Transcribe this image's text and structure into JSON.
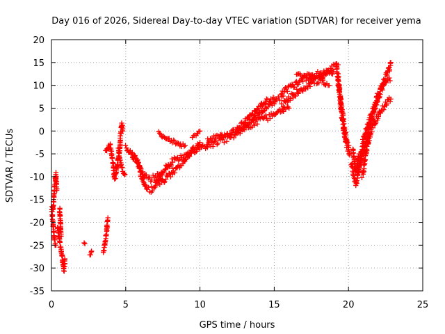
{
  "chart_data": {
    "type": "scatter",
    "title": "Day 016 of 2026, Sidereal Day-to-day VTEC variation (SDTVAR) for receiver yema",
    "xlabel": "GPS time / hours",
    "ylabel": "SDTVAR / TECUs",
    "xlim": [
      0,
      25
    ],
    "ylim": [
      -35,
      20
    ],
    "xticks": [
      0,
      5,
      10,
      15,
      20,
      25
    ],
    "xtick_labels": [
      "0",
      "5",
      "10",
      "15",
      "20",
      "25"
    ],
    "yticks": [
      20,
      15,
      10,
      5,
      0,
      -5,
      -10,
      -15,
      -20,
      -25,
      -30,
      -35
    ],
    "ytick_labels": [
      "20",
      "15",
      "10",
      "5",
      "0",
      "-5",
      "-10",
      "-15",
      "-20",
      "-25",
      "-30",
      "-35"
    ],
    "grid": true,
    "marker": "plus",
    "series": [
      {
        "name": "SDTVAR",
        "color": "#ff0000",
        "traces": [
          {
            "points": [
              [
                0.0,
                -16
              ],
              [
                0.05,
                -18
              ],
              [
                0.1,
                -20
              ],
              [
                0.15,
                -22
              ],
              [
                0.2,
                -23.5
              ],
              [
                0.25,
                -24.5
              ],
              [
                0.3,
                -25
              ]
            ],
            "spread": 1.0
          },
          {
            "points": [
              [
                0.1,
                -17
              ],
              [
                0.15,
                -15
              ],
              [
                0.2,
                -13
              ],
              [
                0.25,
                -11
              ],
              [
                0.3,
                -9.5
              ],
              [
                0.35,
                -13
              ]
            ],
            "spread": 1.0
          },
          {
            "points": [
              [
                0.4,
                -21
              ],
              [
                0.5,
                -23
              ],
              [
                0.6,
                -25
              ],
              [
                0.7,
                -27
              ],
              [
                0.8,
                -29.5
              ],
              [
                0.85,
                -30.5
              ],
              [
                0.9,
                -28
              ]
            ],
            "spread": 1.0
          },
          {
            "points": [
              [
                0.55,
                -17
              ],
              [
                0.6,
                -20
              ],
              [
                0.65,
                -23
              ]
            ],
            "spread": 0.8
          },
          {
            "points": [
              [
                2.2,
                -24.5
              ]
            ],
            "spread": 0.3
          },
          {
            "points": [
              [
                2.6,
                -27.3
              ],
              [
                2.65,
                -26.8
              ],
              [
                2.7,
                -26.3
              ]
            ],
            "spread": 0.4
          },
          {
            "points": [
              [
                3.5,
                -26.5
              ],
              [
                3.6,
                -24.5
              ],
              [
                3.7,
                -22.5
              ],
              [
                3.75,
                -20.5
              ],
              [
                3.8,
                -19
              ]
            ],
            "spread": 1.0
          },
          {
            "points": [
              [
                3.65,
                -4.5
              ],
              [
                3.8,
                -3.5
              ],
              [
                3.95,
                -3
              ],
              [
                4.05,
                -5
              ],
              [
                4.15,
                -7
              ],
              [
                4.2,
                -9
              ],
              [
                4.25,
                -10.5
              ]
            ],
            "spread": 1.0
          },
          {
            "points": [
              [
                4.3,
                -10
              ],
              [
                4.4,
                -8
              ],
              [
                4.5,
                -6
              ],
              [
                4.6,
                -4
              ],
              [
                4.65,
                -1
              ],
              [
                4.7,
                1
              ],
              [
                4.75,
                1.5
              ],
              [
                4.8,
                0
              ]
            ],
            "spread": 1.0
          },
          {
            "points": [
              [
                4.5,
                -4
              ],
              [
                4.6,
                -6.5
              ],
              [
                4.8,
                -8.5
              ],
              [
                4.95,
                -9.5
              ]
            ],
            "spread": 1.2
          },
          {
            "points": [
              [
                5.0,
                -3.5
              ],
              [
                5.3,
                -4.5
              ],
              [
                5.6,
                -6
              ],
              [
                5.9,
                -8
              ],
              [
                6.15,
                -10.5
              ],
              [
                6.4,
                -12.5
              ],
              [
                6.7,
                -12.8
              ],
              [
                7.0,
                -12
              ],
              [
                7.3,
                -10.5
              ]
            ],
            "spread": 1.3
          },
          {
            "points": [
              [
                5.5,
                -5
              ],
              [
                5.8,
                -6.5
              ],
              [
                6.0,
                -8.5
              ],
              [
                6.3,
                -10
              ],
              [
                6.6,
                -10.5
              ],
              [
                7.0,
                -10.2
              ],
              [
                7.4,
                -9
              ]
            ],
            "spread": 1.3
          },
          {
            "points": [
              [
                7.0,
                -11
              ],
              [
                7.5,
                -9
              ],
              [
                8.0,
                -7
              ],
              [
                8.5,
                -6
              ],
              [
                9.0,
                -5.5
              ],
              [
                9.5,
                -4.5
              ],
              [
                10.0,
                -3.5
              ],
              [
                10.5,
                -3
              ]
            ],
            "spread": 1.4
          },
          {
            "points": [
              [
                7.3,
                -11.5
              ],
              [
                7.8,
                -10
              ],
              [
                8.3,
                -8.5
              ],
              [
                8.8,
                -7
              ],
              [
                9.2,
                -5.5
              ],
              [
                9.6,
                -4
              ],
              [
                10.0,
                -2.5
              ]
            ],
            "spread": 1.4
          },
          {
            "points": [
              [
                7.2,
                -0.5
              ],
              [
                7.6,
                -1.2
              ],
              [
                8.0,
                -2
              ],
              [
                8.5,
                -2.8
              ],
              [
                9.0,
                -3.2
              ]
            ],
            "spread": 0.8
          },
          {
            "points": [
              [
                9.5,
                -1
              ],
              [
                9.8,
                -0.5
              ],
              [
                10.0,
                0
              ]
            ],
            "spread": 0.8
          },
          {
            "points": [
              [
                10.5,
                -3
              ],
              [
                11.0,
                -2.5
              ],
              [
                11.5,
                -2
              ],
              [
                12.0,
                -1.2
              ],
              [
                12.5,
                -0.5
              ],
              [
                13.0,
                0.5
              ],
              [
                13.5,
                1.5
              ],
              [
                14.0,
                2.5
              ],
              [
                14.5,
                3
              ],
              [
                15.0,
                3.5
              ],
              [
                15.5,
                4.2
              ],
              [
                16.0,
                5
              ]
            ],
            "spread": 1.5
          },
          {
            "points": [
              [
                10.5,
                -2
              ],
              [
                11.0,
                -1.5
              ],
              [
                11.5,
                -1
              ],
              [
                12.0,
                -0.5
              ],
              [
                12.5,
                0
              ],
              [
                13.0,
                1
              ],
              [
                13.5,
                2.5
              ],
              [
                14.0,
                4
              ],
              [
                14.5,
                5.5
              ],
              [
                15.0,
                6.5
              ],
              [
                15.5,
                7.5
              ]
            ],
            "spread": 1.2
          },
          {
            "points": [
              [
                12.5,
                0.5
              ],
              [
                13.0,
                2
              ],
              [
                13.5,
                3.5
              ],
              [
                14.0,
                5
              ],
              [
                14.5,
                6.5
              ],
              [
                15.0,
                7
              ]
            ],
            "spread": 1.2
          },
          {
            "points": [
              [
                15.5,
                5.5
              ],
              [
                16.0,
                7
              ],
              [
                16.5,
                8.5
              ],
              [
                17.0,
                9.5
              ],
              [
                17.5,
                10.5
              ],
              [
                18.0,
                11
              ],
              [
                18.5,
                12.5
              ],
              [
                19.0,
                14
              ],
              [
                19.3,
                14.5
              ]
            ],
            "spread": 1.4
          },
          {
            "points": [
              [
                15.5,
                8
              ],
              [
                16.0,
                9.5
              ],
              [
                16.5,
                10.5
              ],
              [
                17.0,
                11.5
              ],
              [
                17.5,
                12
              ],
              [
                18.0,
                12.5
              ],
              [
                18.5,
                13
              ],
              [
                19.0,
                13
              ]
            ],
            "spread": 1.4
          },
          {
            "points": [
              [
                16.5,
                12.5
              ],
              [
                17.0,
                12
              ],
              [
                17.3,
                12.5
              ],
              [
                17.6,
                11.5
              ],
              [
                18.0,
                12
              ],
              [
                18.4,
                10.5
              ],
              [
                18.7,
                10
              ]
            ],
            "spread": 0.8
          },
          {
            "points": [
              [
                19.2,
                14
              ],
              [
                19.3,
                11
              ],
              [
                19.4,
                8
              ],
              [
                19.5,
                5
              ],
              [
                19.6,
                2
              ],
              [
                19.7,
                0
              ],
              [
                19.8,
                -2
              ],
              [
                19.9,
                -3.5
              ],
              [
                20.0,
                -4
              ]
            ],
            "spread": 1.5
          },
          {
            "points": [
              [
                19.3,
                12
              ],
              [
                19.4,
                9
              ],
              [
                19.5,
                6
              ],
              [
                19.6,
                3.5
              ],
              [
                19.7,
                1.5
              ],
              [
                19.8,
                -0.5
              ],
              [
                19.9,
                -2.5
              ],
              [
                20.0,
                -3.5
              ],
              [
                20.1,
                -5
              ]
            ],
            "spread": 1.5
          },
          {
            "points": [
              [
                20.2,
                -7
              ],
              [
                20.3,
                -9
              ],
              [
                20.4,
                -10.5
              ],
              [
                20.5,
                -11.5
              ],
              [
                20.6,
                -10
              ],
              [
                20.7,
                -8
              ],
              [
                20.8,
                -6
              ],
              [
                20.9,
                -4
              ],
              [
                21.0,
                -2
              ],
              [
                21.2,
                0
              ],
              [
                21.4,
                2
              ],
              [
                21.6,
                4
              ],
              [
                21.8,
                6
              ],
              [
                22.0,
                8
              ],
              [
                22.2,
                9.5
              ],
              [
                22.4,
                11
              ],
              [
                22.6,
                12.5
              ],
              [
                22.75,
                13.5
              ],
              [
                22.85,
                15
              ]
            ],
            "spread": 1.5
          },
          {
            "points": [
              [
                20.6,
                -9
              ],
              [
                20.8,
                -7
              ],
              [
                21.0,
                -4.5
              ],
              [
                21.2,
                -2
              ],
              [
                21.4,
                0.5
              ],
              [
                21.6,
                3
              ],
              [
                21.8,
                5
              ],
              [
                22.0,
                7
              ],
              [
                22.2,
                9
              ],
              [
                22.4,
                10.5
              ],
              [
                22.6,
                11.5
              ],
              [
                22.8,
                11
              ]
            ],
            "spread": 1.5
          },
          {
            "points": [
              [
                20.3,
                -4
              ],
              [
                20.4,
                -7
              ],
              [
                20.5,
                -9
              ],
              [
                20.6,
                -7
              ],
              [
                20.7,
                -5
              ]
            ],
            "spread": 0.8
          },
          {
            "points": [
              [
                20.9,
                -10
              ],
              [
                21.0,
                -9
              ],
              [
                21.1,
                -6
              ],
              [
                21.3,
                -3
              ],
              [
                21.5,
                0
              ],
              [
                21.8,
                2
              ],
              [
                22.1,
                4
              ],
              [
                22.4,
                5.5
              ],
              [
                22.7,
                6.5
              ],
              [
                22.85,
                7
              ]
            ],
            "spread": 1.3
          }
        ]
      }
    ]
  }
}
